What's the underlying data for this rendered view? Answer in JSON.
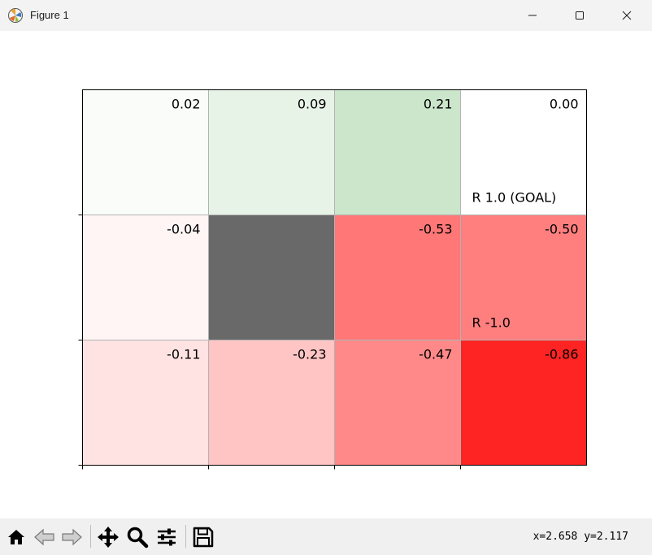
{
  "window": {
    "title": "Figure 1",
    "icon": "matplotlib-figure-icon",
    "controls": [
      "minimize-icon",
      "maximize-icon",
      "close-icon"
    ]
  },
  "grid": {
    "rows": 3,
    "cols": 4,
    "cells": [
      {
        "row": 0,
        "col": 0,
        "value": "0.02",
        "color": "#f9fcf9"
      },
      {
        "row": 0,
        "col": 1,
        "value": "0.09",
        "color": "#e8f3e8"
      },
      {
        "row": 0,
        "col": 2,
        "value": "0.21",
        "color": "#cbe6cb"
      },
      {
        "row": 0,
        "col": 3,
        "value": "0.00",
        "color": "#ffffff",
        "reward": "R 1.0 (GOAL)"
      },
      {
        "row": 1,
        "col": 0,
        "value": "-0.04",
        "color": "#fff5f5"
      },
      {
        "row": 1,
        "col": 1,
        "value": "",
        "color": "#696969",
        "wall": true
      },
      {
        "row": 1,
        "col": 2,
        "value": "-0.53",
        "color": "#ff7777"
      },
      {
        "row": 1,
        "col": 3,
        "value": "-0.50",
        "color": "#ff7f7f",
        "reward": "R -1.0"
      },
      {
        "row": 2,
        "col": 0,
        "value": "-0.11",
        "color": "#ffe3e3"
      },
      {
        "row": 2,
        "col": 1,
        "value": "-0.23",
        "color": "#ffc4c4"
      },
      {
        "row": 2,
        "col": 2,
        "value": "-0.47",
        "color": "#ff8989"
      },
      {
        "row": 2,
        "col": 3,
        "value": "-0.86",
        "color": "#ff2424"
      }
    ]
  },
  "toolbar": {
    "buttons": [
      {
        "name": "home-icon"
      },
      {
        "name": "back-arrow-icon"
      },
      {
        "name": "forward-arrow-icon"
      },
      {
        "name": "pan-icon"
      },
      {
        "name": "zoom-icon"
      },
      {
        "name": "configure-subplots-icon"
      },
      {
        "name": "save-icon"
      }
    ],
    "coordinates": "x=2.658 y=2.117"
  }
}
